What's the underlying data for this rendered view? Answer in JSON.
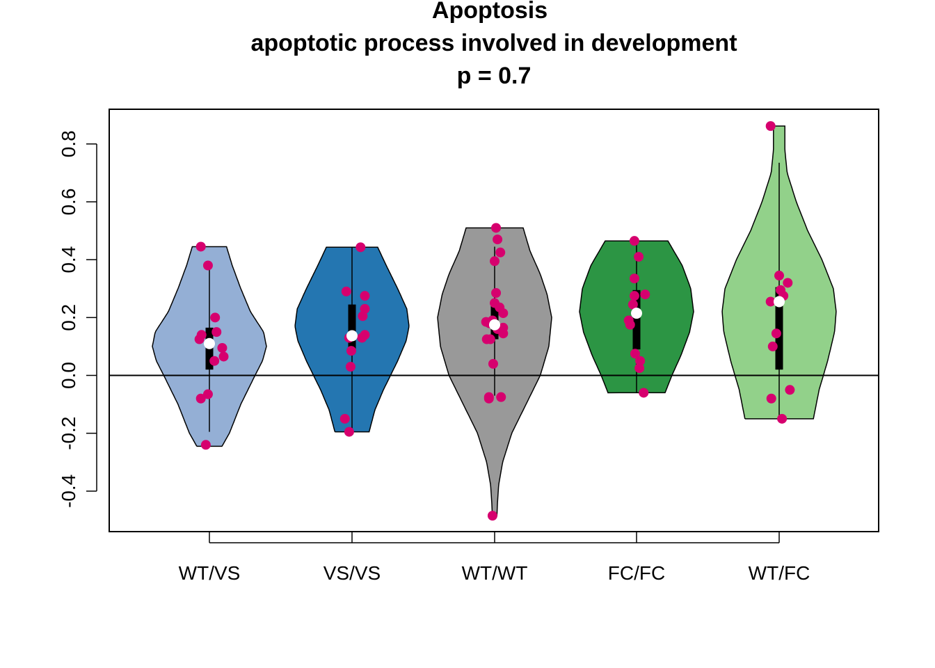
{
  "chart_data": {
    "type": "violin",
    "title_lines": [
      "Apoptosis",
      "apoptotic process involved in development",
      "p = 0.7"
    ],
    "xlabel": "",
    "ylabel": "",
    "ylim": [
      -0.54,
      0.92
    ],
    "yticks": [
      -0.4,
      -0.2,
      0.0,
      0.2,
      0.4,
      0.6,
      0.8
    ],
    "ytick_labels": [
      "-0.4",
      "-0.2",
      "0.0",
      "0.2",
      "0.4",
      "0.6",
      "0.8"
    ],
    "reference_line_y": 0.0,
    "point_color": "#d6006e",
    "median_color": "#ffffff",
    "groups": [
      {
        "label": "WT/VS",
        "fill": "#94afd5",
        "min": -0.245,
        "max": 0.445,
        "q1": 0.02,
        "median": 0.11,
        "q3": 0.165,
        "whisker_low": -0.195,
        "whisker_high": 0.38,
        "density": [
          [
            -0.245,
            0.22
          ],
          [
            -0.2,
            0.35
          ],
          [
            -0.1,
            0.55
          ],
          [
            0.0,
            0.8
          ],
          [
            0.05,
            0.93
          ],
          [
            0.1,
            1.0
          ],
          [
            0.15,
            0.95
          ],
          [
            0.22,
            0.72
          ],
          [
            0.3,
            0.55
          ],
          [
            0.38,
            0.4
          ],
          [
            0.445,
            0.3
          ]
        ],
        "points": [
          [
            -0.12,
            0.445
          ],
          [
            -0.02,
            0.38
          ],
          [
            -0.14,
            0.125
          ],
          [
            -0.11,
            0.14
          ],
          [
            0.08,
            0.2
          ],
          [
            0.1,
            0.15
          ],
          [
            0.18,
            0.095
          ],
          [
            0.2,
            0.065
          ],
          [
            0.07,
            0.05
          ],
          [
            -0.12,
            -0.08
          ],
          [
            -0.02,
            -0.065
          ],
          [
            -0.05,
            -0.24
          ]
        ]
      },
      {
        "label": "VS/VS",
        "fill": "#2476b1",
        "min": -0.195,
        "max": 0.443,
        "q1": 0.08,
        "median": 0.137,
        "q3": 0.245,
        "whisker_low": -0.195,
        "whisker_high": 0.443,
        "density": [
          [
            -0.195,
            0.3
          ],
          [
            -0.12,
            0.4
          ],
          [
            -0.05,
            0.55
          ],
          [
            0.05,
            0.8
          ],
          [
            0.12,
            0.95
          ],
          [
            0.17,
            1.0
          ],
          [
            0.23,
            0.96
          ],
          [
            0.3,
            0.8
          ],
          [
            0.38,
            0.6
          ],
          [
            0.443,
            0.45
          ]
        ],
        "points": [
          [
            0.12,
            0.443
          ],
          [
            -0.08,
            0.29
          ],
          [
            0.18,
            0.275
          ],
          [
            0.18,
            0.23
          ],
          [
            0.15,
            0.205
          ],
          [
            0.18,
            0.14
          ],
          [
            -0.04,
            0.13
          ],
          [
            0.14,
            0.13
          ],
          [
            -0.01,
            0.085
          ],
          [
            -0.02,
            0.03
          ],
          [
            -0.1,
            -0.15
          ],
          [
            -0.04,
            -0.195
          ]
        ]
      },
      {
        "label": "WT/WT",
        "fill": "#999999",
        "min": -0.485,
        "max": 0.51,
        "q1": 0.125,
        "median": 0.175,
        "q3": 0.24,
        "whisker_low": -0.07,
        "whisker_high": 0.445,
        "density": [
          [
            -0.485,
            0.04
          ],
          [
            -0.44,
            0.05
          ],
          [
            -0.38,
            0.07
          ],
          [
            -0.3,
            0.14
          ],
          [
            -0.2,
            0.3
          ],
          [
            -0.1,
            0.55
          ],
          [
            0.0,
            0.8
          ],
          [
            0.1,
            0.95
          ],
          [
            0.2,
            1.0
          ],
          [
            0.28,
            0.92
          ],
          [
            0.35,
            0.8
          ],
          [
            0.43,
            0.62
          ],
          [
            0.51,
            0.5
          ]
        ],
        "points": [
          [
            0.02,
            0.51
          ],
          [
            0.04,
            0.47
          ],
          [
            0.08,
            0.425
          ],
          [
            0.0,
            0.395
          ],
          [
            0.02,
            0.285
          ],
          [
            0.0,
            0.25
          ],
          [
            0.07,
            0.235
          ],
          [
            0.12,
            0.215
          ],
          [
            -0.12,
            0.185
          ],
          [
            -0.07,
            0.18
          ],
          [
            -0.03,
            0.19
          ],
          [
            0.04,
            0.16
          ],
          [
            0.12,
            0.165
          ],
          [
            0.12,
            0.145
          ],
          [
            -0.11,
            0.125
          ],
          [
            -0.06,
            0.125
          ],
          [
            -0.02,
            0.04
          ],
          [
            -0.08,
            -0.075
          ],
          [
            -0.08,
            -0.08
          ],
          [
            0.09,
            -0.075
          ],
          [
            -0.03,
            -0.485
          ]
        ]
      },
      {
        "label": "FC/FC",
        "fill": "#2c9544",
        "min": -0.06,
        "max": 0.465,
        "q1": 0.09,
        "median": 0.215,
        "q3": 0.295,
        "whisker_low": -0.06,
        "whisker_high": 0.465,
        "density": [
          [
            -0.06,
            0.5
          ],
          [
            0.0,
            0.62
          ],
          [
            0.07,
            0.78
          ],
          [
            0.15,
            0.93
          ],
          [
            0.22,
            1.0
          ],
          [
            0.3,
            0.95
          ],
          [
            0.38,
            0.8
          ],
          [
            0.465,
            0.55
          ]
        ],
        "points": [
          [
            -0.03,
            0.465
          ],
          [
            0.03,
            0.41
          ],
          [
            -0.03,
            0.335
          ],
          [
            -0.03,
            0.275
          ],
          [
            0.12,
            0.28
          ],
          [
            -0.05,
            0.245
          ],
          [
            -0.11,
            0.19
          ],
          [
            -0.09,
            0.175
          ],
          [
            -0.02,
            0.075
          ],
          [
            0.05,
            0.05
          ],
          [
            0.04,
            0.025
          ],
          [
            0.1,
            -0.06
          ]
        ]
      },
      {
        "label": "WT/FC",
        "fill": "#92d18a",
        "min": -0.15,
        "max": 0.862,
        "q1": 0.02,
        "median": 0.255,
        "q3": 0.305,
        "whisker_low": -0.15,
        "whisker_high": 0.735,
        "density": [
          [
            -0.15,
            0.6
          ],
          [
            -0.05,
            0.7
          ],
          [
            0.05,
            0.85
          ],
          [
            0.15,
            0.97
          ],
          [
            0.22,
            1.0
          ],
          [
            0.3,
            0.95
          ],
          [
            0.4,
            0.75
          ],
          [
            0.5,
            0.5
          ],
          [
            0.6,
            0.3
          ],
          [
            0.7,
            0.14
          ],
          [
            0.78,
            0.1
          ],
          [
            0.862,
            0.1
          ]
        ],
        "points": [
          [
            -0.12,
            0.862
          ],
          [
            0.0,
            0.345
          ],
          [
            0.12,
            0.32
          ],
          [
            0.02,
            0.295
          ],
          [
            0.06,
            0.275
          ],
          [
            -0.12,
            0.255
          ],
          [
            -0.04,
            0.145
          ],
          [
            -0.09,
            0.1
          ],
          [
            0.15,
            -0.05
          ],
          [
            -0.11,
            -0.08
          ],
          [
            0.04,
            -0.15
          ]
        ]
      }
    ]
  }
}
